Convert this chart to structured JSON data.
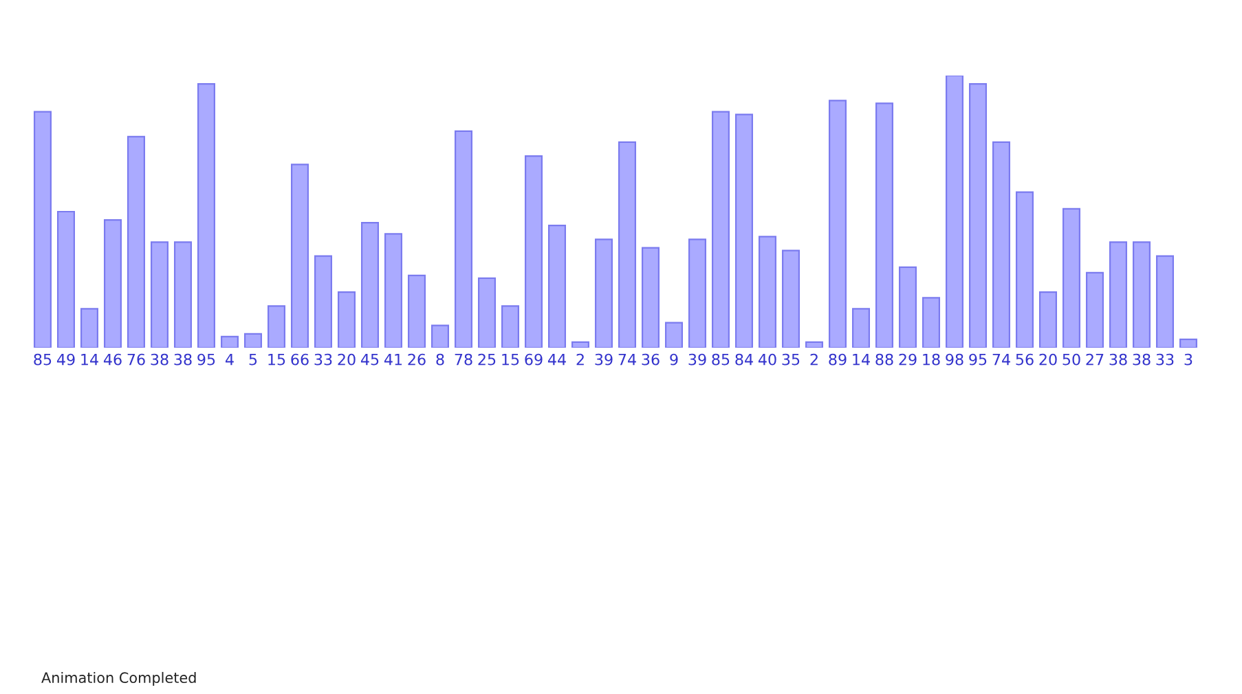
{
  "chart_data": {
    "type": "bar",
    "categories": [
      null,
      null,
      null,
      null,
      null,
      null,
      null,
      null,
      null,
      null,
      null,
      null,
      null,
      null,
      null,
      null,
      null,
      null,
      null,
      null,
      null,
      null,
      null,
      null,
      null,
      null,
      null,
      null,
      null,
      null,
      null,
      null,
      null,
      null,
      null,
      null,
      null,
      null,
      null,
      null,
      null,
      null,
      null,
      null,
      null,
      null,
      null,
      null,
      null,
      null
    ],
    "values": [
      85,
      49,
      14,
      46,
      76,
      38,
      38,
      95,
      4,
      5,
      15,
      66,
      33,
      20,
      45,
      41,
      26,
      8,
      78,
      25,
      15,
      69,
      44,
      2,
      39,
      74,
      36,
      9,
      39,
      85,
      84,
      40,
      35,
      2,
      89,
      14,
      88,
      29,
      18,
      98,
      95,
      74,
      56,
      20,
      50,
      27,
      38,
      38,
      33,
      3
    ],
    "color": "#aaaaff",
    "data_labels": true,
    "annotations": [
      "Animation Completed"
    ]
  }
}
